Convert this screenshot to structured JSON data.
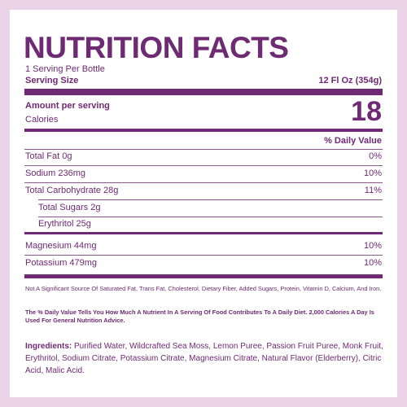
{
  "header": {
    "title": "NUTRITION FACTS",
    "servings": "1 Serving Per Bottle",
    "serving_size_label": "Serving Size",
    "serving_size_value": "12 Fl Oz (354g)"
  },
  "calories": {
    "amount_label": "Amount per serving",
    "label": "Calories",
    "value": "18"
  },
  "daily_value_header": "% Daily Value",
  "rows": [
    {
      "name": "Total Fat 0g",
      "dv": "0%"
    },
    {
      "name": "Sodium 236mg",
      "dv": "10%"
    },
    {
      "name": "Total Carbohydrate 28g",
      "dv": "11%"
    },
    {
      "name": "Total Sugars 2g",
      "dv": null
    },
    {
      "name": "Erythritol 25g",
      "dv": null
    },
    {
      "name": "Magnesium 44mg",
      "dv": "10%"
    },
    {
      "name": "Potassium 479mg",
      "dv": "10%"
    }
  ],
  "footnotes": [
    "Not A Significant Source Of Saturated Fat, Trans Fat, Cholesterol, Dietary Fiber, Added Sugars, Protein, Vitamin D, Calcium, And Iron.",
    "The % Daily Value Tells You How Much A Nutrient In A Serving Of Food Contributes To A Daily Diet. 2,000 Calories A Day Is Used For General Nutrition Advice."
  ],
  "ingredients": {
    "label": "Ingredients:",
    "text": "Purified Water, Wildcrafted Sea Moss, Lemon Puree, Passion Fruit Puree, Monk Fruit, Erythritol, Sodium Citrate, Potassium Citrate, Magnesium Citrate, Natural Flavor (Elderberry), Citric Acid, Malic Acid."
  }
}
